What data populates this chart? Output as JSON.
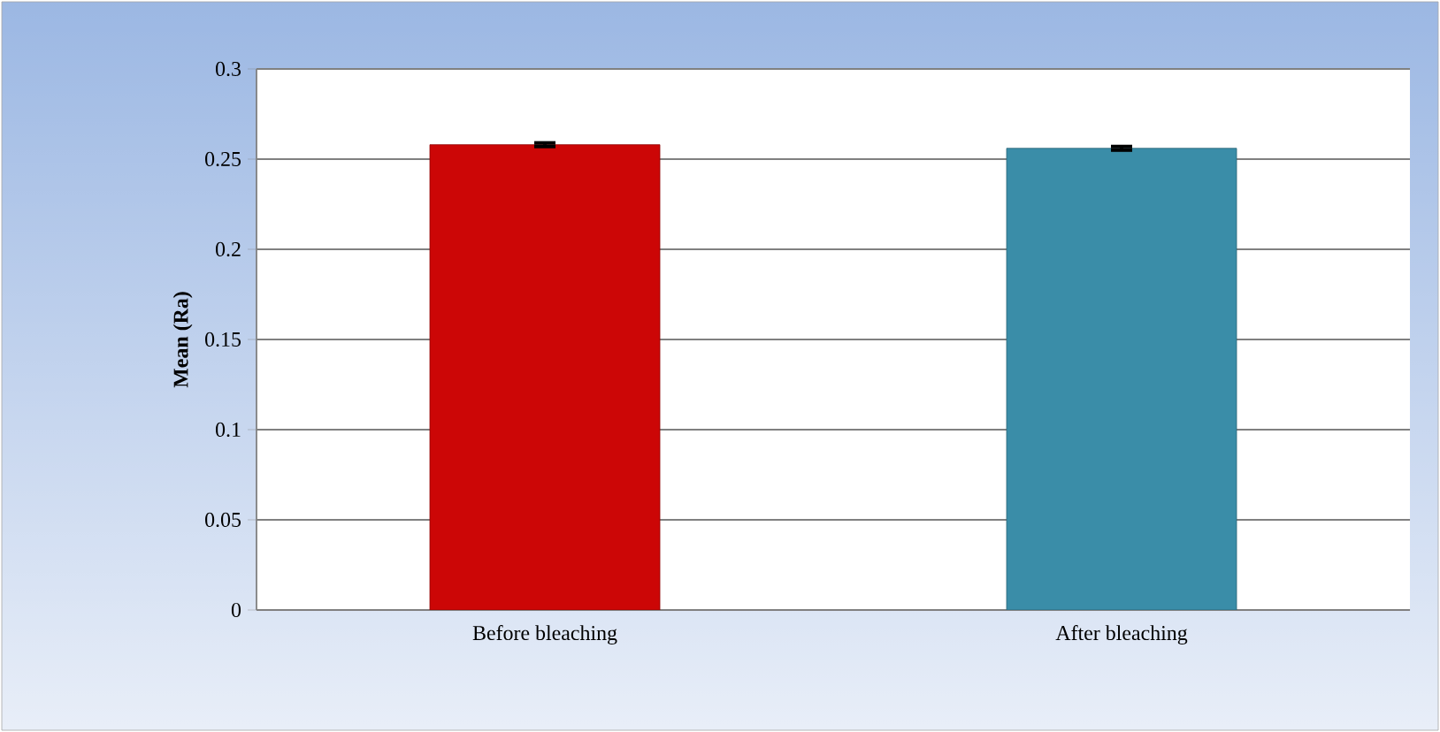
{
  "chart_data": {
    "type": "bar",
    "ylabel": "Mean (Ra)",
    "categories": [
      "Before bleaching",
      "After bleaching"
    ],
    "values": [
      0.258,
      0.256
    ],
    "colors": [
      "#cc0606",
      "#3a8da8"
    ],
    "errors": [
      0.001,
      0.001
    ],
    "ylim": [
      0,
      0.3
    ],
    "yticks": [
      0,
      0.05,
      0.1,
      0.15,
      0.2,
      0.25,
      0.3
    ],
    "grid": "y"
  }
}
